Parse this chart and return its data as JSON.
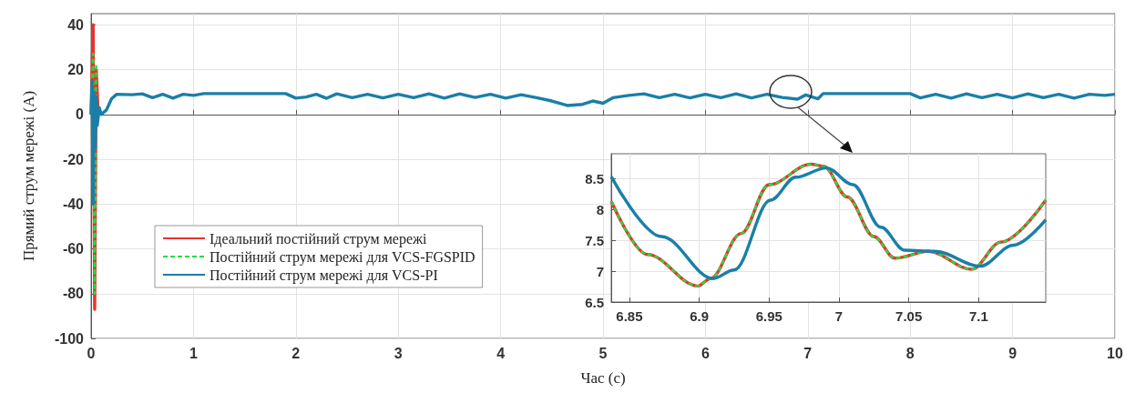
{
  "chart_data": [
    {
      "type": "line",
      "xlabel": "Час (с)",
      "ylabel": "Прямий струм мережі (А)",
      "xlim": [
        0,
        10
      ],
      "ylim": [
        -100,
        45
      ],
      "xticks": [
        0,
        1,
        2,
        3,
        4,
        5,
        6,
        7,
        8,
        9,
        10
      ],
      "yticks": [
        -100,
        -80,
        -60,
        -40,
        -20,
        0,
        20,
        40
      ],
      "grid": true,
      "legend": "bottom left",
      "marker": "none",
      "series": [
        {
          "name": "Ідеальний постійний струм мережі",
          "color": "#e8322b",
          "line_style": "solid",
          "x": [
            0,
            0.02,
            0.035,
            0.05,
            0.07
          ],
          "values": [
            0,
            40,
            -87,
            20,
            0
          ]
        },
        {
          "name": "Постійний струм мережі для VCS-FGSPID",
          "color": "#22dd44",
          "line_style": "dashed",
          "x": [
            0,
            0.02,
            0.035,
            0.05
          ],
          "values": [
            0,
            27,
            -80,
            22
          ]
        },
        {
          "name": "Постійний струм мережі для VCS-PI",
          "color": "#1a7fa8",
          "line_style": "solid",
          "x": [
            0,
            0.01,
            0.02,
            0.03,
            0.04,
            0.05,
            0.06,
            0.08,
            0.1,
            0.15,
            0.2,
            0.25,
            0.4,
            0.5,
            0.6,
            0.7,
            0.8,
            0.9,
            1.0,
            1.1,
            1.9,
            2.0,
            2.1,
            2.2,
            2.3,
            2.4,
            2.55,
            2.7,
            2.85,
            3.0,
            3.15,
            3.3,
            3.45,
            3.6,
            3.75,
            3.9,
            4.05,
            4.2,
            4.35,
            4.5,
            4.65,
            4.8,
            4.9,
            5.0,
            5.1,
            5.25,
            5.4,
            5.55,
            5.7,
            5.85,
            6.0,
            6.15,
            6.3,
            6.45,
            6.6,
            6.75,
            6.9,
            6.98,
            7.1,
            7.15,
            8.0,
            8.1,
            8.25,
            8.4,
            8.55,
            8.7,
            8.85,
            9.0,
            9.15,
            9.3,
            9.45,
            9.6,
            9.75,
            9.9,
            10
          ],
          "values": [
            0,
            15,
            -40,
            10,
            -15,
            8,
            -5,
            3,
            0,
            2,
            7,
            9,
            8.8,
            9.2,
            7.5,
            9,
            7.3,
            9,
            8.5,
            9.3,
            9.3,
            7.3,
            7.8,
            9,
            7.2,
            9.2,
            7.5,
            9,
            7.4,
            9,
            7.5,
            9.2,
            7.3,
            9.2,
            7.6,
            9,
            7.3,
            8.8,
            7.5,
            6,
            4,
            4.5,
            6,
            5,
            7.5,
            8.5,
            9.2,
            7.5,
            9,
            7.4,
            9,
            7.5,
            9.2,
            7.4,
            9,
            7.6,
            6.8,
            8.7,
            7,
            9.3,
            9.3,
            7.4,
            9,
            7.3,
            9.2,
            7.5,
            9,
            7.4,
            9.2,
            7.5,
            9,
            7.3,
            9,
            8.5,
            9
          ]
        }
      ]
    },
    {
      "type": "line",
      "xlim": [
        6.837,
        7.148
      ],
      "ylim": [
        6.5,
        8.9
      ],
      "xticks": [
        6.85,
        6.9,
        6.95,
        7,
        7.05,
        7.1
      ],
      "yticks": [
        6.5,
        7,
        7.5,
        8,
        8.5
      ],
      "grid": true,
      "marker": "none",
      "series": [
        {
          "color": "#e8322b",
          "line_style": "solid",
          "x": [
            6.837,
            6.863,
            6.899,
            6.908,
            6.93,
            6.95,
            6.98,
            6.989,
            7.006,
            7.025,
            7.04,
            7.064,
            7.095,
            7.116,
            7.148
          ],
          "values": [
            8.13,
            7.27,
            6.76,
            6.88,
            7.61,
            8.4,
            8.73,
            8.7,
            8.2,
            7.56,
            7.21,
            7.32,
            7.03,
            7.47,
            8.15
          ]
        },
        {
          "color": "#22dd44",
          "line_style": "dashed",
          "x": [
            6.837,
            6.863,
            6.899,
            6.908,
            6.93,
            6.95,
            6.98,
            6.989,
            7.006,
            7.025,
            7.04,
            7.064,
            7.095,
            7.116,
            7.148
          ],
          "values": [
            8.13,
            7.27,
            6.76,
            6.88,
            7.61,
            8.4,
            8.73,
            8.7,
            8.2,
            7.56,
            7.21,
            7.32,
            7.03,
            7.47,
            8.15
          ]
        },
        {
          "color": "#1a7fa8",
          "line_style": "solid",
          "x": [
            6.837,
            6.873,
            6.91,
            6.925,
            6.951,
            6.969,
            6.991,
            7.01,
            7.03,
            7.047,
            7.069,
            7.101,
            7.125,
            7.148
          ],
          "values": [
            8.53,
            7.56,
            6.88,
            7.02,
            8.15,
            8.52,
            8.67,
            8.4,
            7.71,
            7.34,
            7.32,
            7.08,
            7.42,
            7.83
          ]
        }
      ]
    }
  ]
}
